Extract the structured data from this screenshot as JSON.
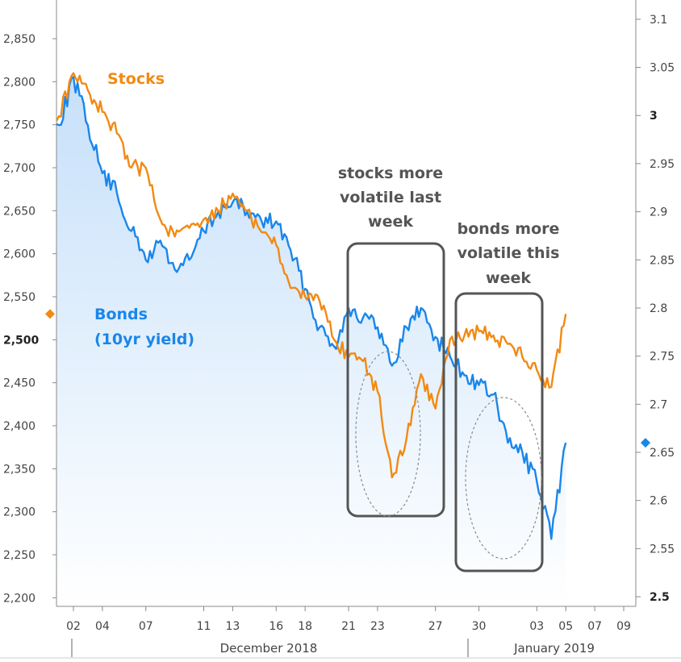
{
  "colors": {
    "stocks": "#f28a13",
    "bonds": "#1a86ea",
    "fill_top": "#c6e0fa",
    "fill_bottom": "#ffffff",
    "box": "#555555",
    "circle": "#8a8a8a"
  },
  "labels": {
    "stocks": "Stocks",
    "bonds_line1": "Bonds",
    "bonds_line2": "(10yr yield)",
    "note1_lines": [
      "stocks more",
      "volatile last",
      "week"
    ],
    "note2_lines": [
      "bonds more",
      "volatile this",
      "week"
    ],
    "month1": "December 2018",
    "month2": "January 2019"
  },
  "chart_data": {
    "type": "line",
    "x_unit": "date",
    "x_ticks": [
      {
        "label": "02",
        "date": "2018-12-02"
      },
      {
        "label": "04",
        "date": "2018-12-04"
      },
      {
        "label": "07",
        "date": "2018-12-07"
      },
      {
        "label": "11",
        "date": "2018-12-11"
      },
      {
        "label": "13",
        "date": "2018-12-13"
      },
      {
        "label": "16",
        "date": "2018-12-16"
      },
      {
        "label": "18",
        "date": "2018-12-18"
      },
      {
        "label": "21",
        "date": "2018-12-21"
      },
      {
        "label": "23",
        "date": "2018-12-23"
      },
      {
        "label": "27",
        "date": "2018-12-27"
      },
      {
        "label": "30",
        "date": "2018-12-30"
      },
      {
        "label": "03",
        "date": "2019-01-03"
      },
      {
        "label": "05",
        "date": "2019-01-05"
      },
      {
        "label": "07",
        "date": "2019-01-07"
      },
      {
        "label": "09",
        "date": "2019-01-09"
      }
    ],
    "y_left": {
      "range": [
        2190,
        2895
      ],
      "ticks": [
        "2,850",
        "2,800",
        "2,750",
        "2,700",
        "2,650",
        "2,600",
        "2,550",
        "2,500",
        "2,450",
        "2,400",
        "2,350",
        "2,300",
        "2,250",
        "2,200"
      ],
      "bold_tick": "2,500"
    },
    "y_right": {
      "range": [
        2.49,
        3.12
      ],
      "ticks": [
        "3.1",
        "3.05",
        "3",
        "2.95",
        "2.9",
        "2.85",
        "2.8",
        "2.75",
        "2.7",
        "2.65",
        "2.6",
        "2.55",
        "2.5"
      ],
      "bold_ticks": [
        "3",
        "2.5"
      ]
    },
    "series": [
      {
        "name": "Stocks",
        "axis": "left",
        "points": [
          [
            "2018-11-30",
            2730
          ],
          [
            "2018-12-01",
            2760
          ],
          [
            "2018-12-02",
            2810
          ],
          [
            "2018-12-03",
            2790
          ],
          [
            "2018-12-04",
            2765
          ],
          [
            "2018-12-05",
            2740
          ],
          [
            "2018-12-06",
            2700
          ],
          [
            "2018-12-07",
            2700
          ],
          [
            "2018-12-08",
            2640
          ],
          [
            "2018-12-09",
            2620
          ],
          [
            "2018-12-10",
            2630
          ],
          [
            "2018-12-11",
            2640
          ],
          [
            "2018-12-12",
            2650
          ],
          [
            "2018-12-13",
            2670
          ],
          [
            "2018-12-14",
            2650
          ],
          [
            "2018-12-15",
            2625
          ],
          [
            "2018-12-16",
            2610
          ],
          [
            "2018-12-17",
            2560
          ],
          [
            "2018-12-18",
            2550
          ],
          [
            "2018-12-19",
            2545
          ],
          [
            "2018-12-20",
            2500
          ],
          [
            "2018-12-21",
            2480
          ],
          [
            "2018-12-22",
            2475
          ],
          [
            "2018-12-23",
            2440
          ],
          [
            "2018-12-24",
            2340
          ],
          [
            "2018-12-25",
            2385
          ],
          [
            "2018-12-26",
            2460
          ],
          [
            "2018-12-27",
            2420
          ],
          [
            "2018-12-28",
            2500
          ],
          [
            "2018-12-29",
            2505
          ],
          [
            "2018-12-30",
            2510
          ],
          [
            "2018-12-31",
            2505
          ],
          [
            "2019-01-01",
            2495
          ],
          [
            "2019-01-02",
            2480
          ],
          [
            "2019-01-03",
            2465
          ],
          [
            "2019-01-04",
            2445
          ],
          [
            "2019-01-05",
            2530
          ]
        ]
      },
      {
        "name": "Bonds (10yr yield)",
        "axis": "right",
        "points": [
          [
            "2018-11-30",
            3.0
          ],
          [
            "2018-12-01",
            2.99
          ],
          [
            "2018-12-02",
            3.04
          ],
          [
            "2018-12-03",
            2.99
          ],
          [
            "2018-12-04",
            2.94
          ],
          [
            "2018-12-05",
            2.92
          ],
          [
            "2018-12-06",
            2.88
          ],
          [
            "2018-12-07",
            2.85
          ],
          [
            "2018-12-08",
            2.87
          ],
          [
            "2018-12-09",
            2.84
          ],
          [
            "2018-12-10",
            2.85
          ],
          [
            "2018-12-11",
            2.88
          ],
          [
            "2018-12-12",
            2.9
          ],
          [
            "2018-12-13",
            2.91
          ],
          [
            "2018-12-14",
            2.9
          ],
          [
            "2018-12-15",
            2.89
          ],
          [
            "2018-12-16",
            2.89
          ],
          [
            "2018-12-17",
            2.86
          ],
          [
            "2018-12-18",
            2.82
          ],
          [
            "2018-12-19",
            2.78
          ],
          [
            "2018-12-20",
            2.76
          ],
          [
            "2018-12-21",
            2.8
          ],
          [
            "2018-12-22",
            2.79
          ],
          [
            "2018-12-23",
            2.78
          ],
          [
            "2018-12-24",
            2.74
          ],
          [
            "2018-12-25",
            2.78
          ],
          [
            "2018-12-26",
            2.8
          ],
          [
            "2018-12-27",
            2.77
          ],
          [
            "2018-12-28",
            2.75
          ],
          [
            "2018-12-29",
            2.73
          ],
          [
            "2018-12-30",
            2.72
          ],
          [
            "2018-12-31",
            2.71
          ],
          [
            "2019-01-01",
            2.66
          ],
          [
            "2019-01-02",
            2.65
          ],
          [
            "2019-01-03",
            2.62
          ],
          [
            "2019-01-04",
            2.56
          ],
          [
            "2019-01-05",
            2.66
          ]
        ]
      }
    ],
    "annotations": [
      {
        "text": "stocks more volatile last week"
      },
      {
        "text": "bonds more volatile this week"
      }
    ],
    "legend": "inline labels",
    "grid": false
  }
}
